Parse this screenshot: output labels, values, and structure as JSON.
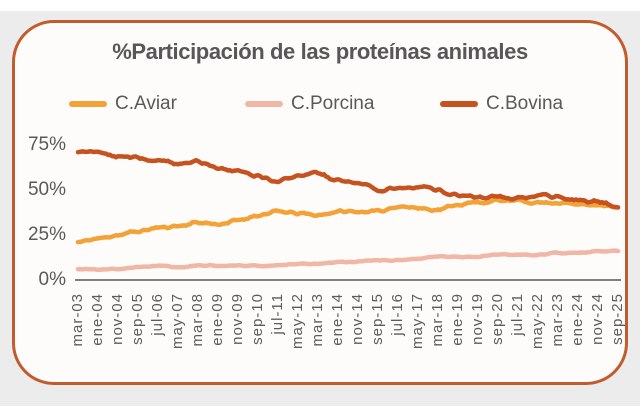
{
  "card": {
    "title": "%Participación de las proteínas animales"
  },
  "legend": [
    {
      "label": "C.Aviar",
      "color": "#F2A236"
    },
    {
      "label": "C.Porcina",
      "color": "#F0B7A6"
    },
    {
      "label": "C.Bovina",
      "color": "#C5521F"
    }
  ],
  "colors": {
    "card_border": "#C25B2E",
    "card_background": "#FDFCFA",
    "page_background": "#ECECEC",
    "axis_line": "#808080",
    "text_gray": "#595959"
  },
  "chart_data": {
    "type": "line",
    "title": "%Participación de las proteínas animales",
    "xlabel": "",
    "ylabel": "",
    "ylim": [
      0,
      80
    ],
    "grid": false,
    "legend_position": "top",
    "ytick_labels": [
      "75%",
      "50%",
      "25%",
      "0%"
    ],
    "ytick_values": [
      75,
      50,
      25,
      0
    ],
    "categories": [
      "mar-03",
      "ene-04",
      "nov-04",
      "sep-05",
      "jul-06",
      "may-07",
      "mar-08",
      "ene-09",
      "nov-09",
      "sep-10",
      "jul-11",
      "may-12",
      "mar-13",
      "ene-14",
      "nov-14",
      "sep-15",
      "jul-16",
      "may-17",
      "mar-18",
      "ene-19",
      "nov-19",
      "sep-20",
      "jul-21",
      "may-22",
      "mar-23",
      "ene-24",
      "nov-24",
      "sep-25"
    ],
    "series": [
      {
        "name": "C.Aviar",
        "color": "#F2A236",
        "values": [
          21,
          23,
          25,
          27,
          29,
          30,
          32,
          31,
          33,
          36,
          38,
          37,
          36,
          38,
          38,
          38,
          41,
          40,
          39,
          42,
          43,
          44,
          44,
          43,
          43,
          42,
          42,
          40
        ]
      },
      {
        "name": "C.Porcina",
        "color": "#F0B7A6",
        "values": [
          6,
          6,
          6,
          7,
          8,
          7,
          8,
          8,
          8,
          8,
          8,
          9,
          9,
          10,
          10,
          11,
          11,
          12,
          13,
          13,
          13,
          14,
          14,
          14,
          15,
          15,
          16,
          16
        ]
      },
      {
        "name": "C.Bovina",
        "color": "#C5521F",
        "values": [
          72,
          71,
          69,
          68,
          66,
          65,
          66,
          62,
          61,
          58,
          55,
          58,
          59,
          55,
          54,
          50,
          51,
          52,
          50,
          47,
          46,
          46,
          45,
          47,
          46,
          44,
          43,
          41
        ]
      }
    ]
  }
}
